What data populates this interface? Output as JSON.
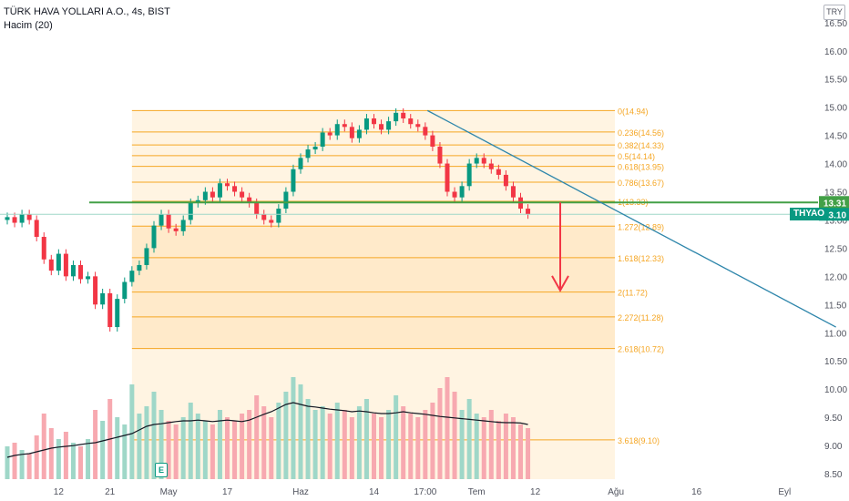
{
  "legend": {
    "title": "TÜRK HAVA YOLLARI A.O., 4s, BIST",
    "indicator": "Hacim (20)"
  },
  "currency": "TRY",
  "symbol_label": "THYAO",
  "earnings_marker": "E",
  "colors": {
    "up": "#089981",
    "down": "#f23645",
    "fib": "#f5a623",
    "fib_fill": "#fde9c6",
    "trendline": "#2e86ab",
    "support": "#43a047",
    "arrow": "#f23645"
  },
  "chart_data": {
    "type": "candlestick",
    "y_axis": {
      "min": 8.5,
      "max": 16.5,
      "step": 0.5,
      "ticks": [
        "8.50",
        "9.00",
        "9.50",
        "10.00",
        "10.50",
        "11.00",
        "11.50",
        "12.00",
        "12.50",
        "13.00",
        "13.50",
        "14.00",
        "14.50",
        "15.00",
        "15.50",
        "16.00",
        "16.50"
      ],
      "top_label": "16.50"
    },
    "x_axis": {
      "ticks": [
        {
          "label": "12",
          "i": 7
        },
        {
          "label": "21",
          "i": 14
        },
        {
          "label": "May",
          "i": 22
        },
        {
          "label": "17",
          "i": 30
        },
        {
          "label": "Haz",
          "i": 40
        },
        {
          "label": "14",
          "i": 50
        },
        {
          "label": "17:00",
          "i": 57
        },
        {
          "label": "Tem",
          "i": 64
        },
        {
          "label": "12",
          "i": 72
        },
        {
          "label": "Ağu",
          "i": 83
        },
        {
          "label": "16",
          "i": 94
        },
        {
          "label": "Eyl",
          "i": 106
        }
      ]
    },
    "price_labels": [
      {
        "value": 13.31,
        "text": "13.31",
        "color": "#43a047"
      },
      {
        "value": 13.1,
        "text": "13.10",
        "color": "#089981"
      }
    ],
    "closes": [
      13.05,
      12.95,
      13.1,
      13.0,
      12.7,
      12.3,
      12.1,
      12.4,
      12.0,
      12.2,
      11.95,
      12.0,
      11.5,
      11.7,
      11.1,
      11.6,
      11.9,
      12.1,
      12.2,
      12.5,
      12.9,
      13.1,
      12.85,
      12.8,
      13.0,
      13.3,
      13.35,
      13.5,
      13.4,
      13.65,
      13.6,
      13.5,
      13.4,
      13.3,
      13.1,
      13.0,
      12.95,
      13.2,
      13.5,
      13.9,
      14.1,
      14.25,
      14.3,
      14.55,
      14.5,
      14.7,
      14.65,
      14.45,
      14.6,
      14.8,
      14.7,
      14.6,
      14.75,
      14.9,
      14.8,
      14.7,
      14.65,
      14.5,
      14.3,
      14.0,
      13.5,
      13.4,
      13.6,
      14.0,
      14.1,
      14.0,
      13.9,
      13.8,
      13.6,
      13.4,
      13.2,
      13.1
    ],
    "volumes": [
      0.9,
      1.0,
      0.8,
      0.7,
      1.2,
      1.8,
      1.4,
      1.1,
      1.3,
      1.0,
      0.9,
      1.1,
      1.9,
      1.6,
      2.2,
      1.7,
      1.5,
      2.6,
      1.8,
      2.0,
      2.4,
      1.9,
      1.6,
      1.5,
      1.7,
      2.1,
      1.8,
      1.6,
      1.5,
      1.9,
      1.7,
      1.6,
      1.8,
      1.9,
      2.3,
      2.0,
      1.7,
      2.1,
      2.4,
      2.8,
      2.6,
      2.2,
      1.9,
      2.0,
      1.8,
      2.1,
      1.9,
      1.7,
      2.0,
      2.2,
      1.8,
      1.7,
      1.9,
      2.3,
      2.0,
      1.8,
      1.7,
      1.9,
      2.1,
      2.5,
      2.8,
      2.4,
      1.9,
      2.2,
      1.8,
      1.7,
      1.9,
      1.6,
      1.8,
      1.7,
      1.5,
      1.4
    ],
    "volume_ma": [
      0.6,
      0.65,
      0.68,
      0.7,
      0.75,
      0.8,
      0.85,
      0.88,
      0.9,
      0.92,
      0.95,
      0.98,
      1.0,
      1.05,
      1.1,
      1.15,
      1.2,
      1.25,
      1.35,
      1.45,
      1.5,
      1.52,
      1.55,
      1.58,
      1.6,
      1.6,
      1.62,
      1.6,
      1.58,
      1.6,
      1.62,
      1.6,
      1.58,
      1.62,
      1.7,
      1.78,
      1.85,
      1.95,
      2.05,
      2.1,
      2.05,
      2.0,
      1.98,
      1.95,
      1.92,
      1.9,
      1.88,
      1.85,
      1.87,
      1.85,
      1.82,
      1.8,
      1.8,
      1.82,
      1.85,
      1.82,
      1.8,
      1.78,
      1.75,
      1.72,
      1.7,
      1.68,
      1.66,
      1.64,
      1.62,
      1.6,
      1.58,
      1.56,
      1.55,
      1.55,
      1.54,
      1.5
    ],
    "fibonacci": [
      {
        "level": "0",
        "price": 14.94
      },
      {
        "level": "0.236",
        "price": 14.56
      },
      {
        "level": "0.382",
        "price": 14.33
      },
      {
        "level": "0.5",
        "price": 14.14
      },
      {
        "level": "0.618",
        "price": 13.95
      },
      {
        "level": "0.786",
        "price": 13.67
      },
      {
        "level": "1",
        "price": 13.33
      },
      {
        "level": "1.272",
        "price": 12.89
      },
      {
        "level": "1.618",
        "price": 12.33
      },
      {
        "level": "2",
        "price": 11.72
      },
      {
        "level": "2.272",
        "price": 11.28
      },
      {
        "level": "2.618",
        "price": 10.72
      },
      {
        "level": "3.618",
        "price": 9.1
      }
    ],
    "support_level": 13.31,
    "last_price": 13.1,
    "trendline": {
      "from": {
        "i": 57.3,
        "price": 14.94
      },
      "to": {
        "i": 113,
        "price": 11.1
      }
    },
    "arrow": {
      "from_price": 13.31,
      "to_price": 11.75
    }
  }
}
